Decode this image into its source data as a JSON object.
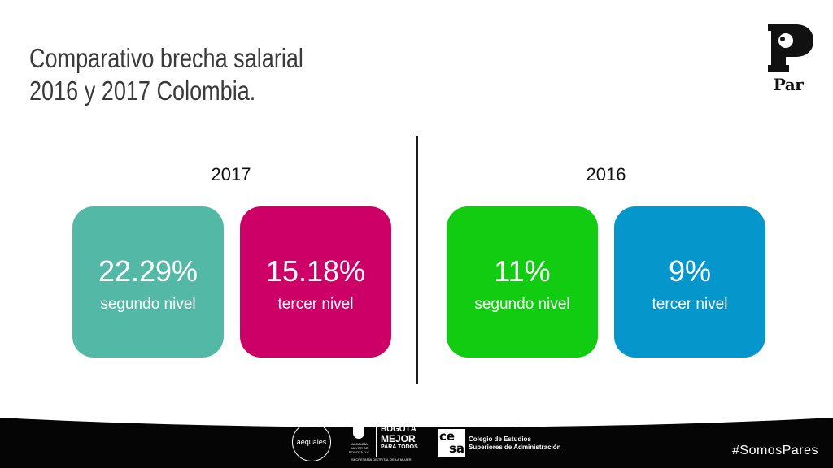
{
  "slide": {
    "title_line1": "Comparativo brecha salarial",
    "title_line2": "2016 y 2017 Colombia."
  },
  "logo": {
    "name": "par-logo",
    "text": "Par"
  },
  "groups": [
    {
      "year": "2017",
      "cards": [
        {
          "value": "22.29%",
          "label": "segundo nivel",
          "color": "#53b9a6"
        },
        {
          "value": "15.18%",
          "label": "tercer nivel",
          "color": "#cc0066"
        }
      ]
    },
    {
      "year": "2016",
      "cards": [
        {
          "value": "11%",
          "label": "segundo nivel",
          "color": "#11cc11"
        },
        {
          "value": "9%",
          "label": "tercer nivel",
          "color": "#0596cc"
        }
      ]
    }
  ],
  "footer": {
    "background": "#050505",
    "sponsors": {
      "aequales": "aequales",
      "alcaldia": "ALCALDÍA MAYOR DE BOGOTÁ D.C.",
      "bogota_line1": "BOGOTÁ",
      "bogota_line2": "MEJOR",
      "bogota_line3": "PARA TODOS",
      "secretaria": "SECRETARÍA DISTRITAL DE LA MUJER",
      "cesa_line1": "Colegio de Estudios",
      "cesa_line2": "Superiores de Administración"
    },
    "hashtag": "#SomosPares"
  }
}
